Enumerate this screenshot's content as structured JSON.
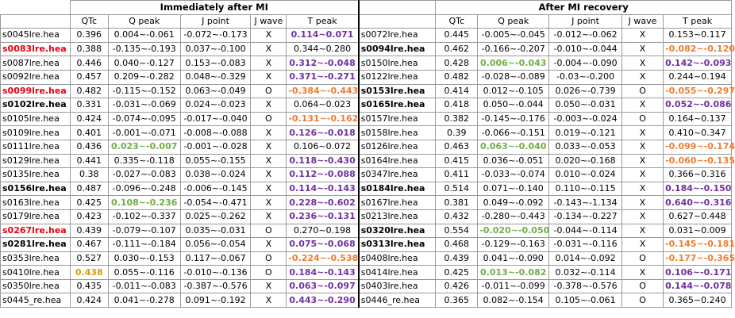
{
  "header": {
    "group1": "Immediately after MI",
    "group2": "After MI recovery"
  },
  "columns": [
    "QTc",
    "Q peak",
    "J point",
    "J wave",
    "T peak"
  ],
  "colors": {
    "red": "#e8000e",
    "purple": "#7030a0",
    "orange": "#ed7d31",
    "green": "#70ad47",
    "gold": "#d89e00"
  },
  "rows": [
    {
      "f1": "s0045lre.hea",
      "q1": "0.396",
      "qp1": "0.004~-0.061",
      "j1": "-0.072~-0.173",
      "w1": "X",
      "t1": "0.114~0.071",
      "f2": "s0072lre.hea",
      "q2": "0.445",
      "qp2": "-0.005~-0.045",
      "j2": "-0.012~-0.062",
      "w2": "X",
      "t2": "0.153~0.117"
    },
    {
      "f1": "s0083lre.hea",
      "q1": "0.388",
      "qp1": "-0.135~-0.193",
      "j1": "0.037~-0.100",
      "w1": "X",
      "t1": "0.344~0.280",
      "f2": "s0094lre.hea",
      "q2": "0.462",
      "qp2": "-0.166~-0.207",
      "j2": "-0.010~-0.044",
      "w2": "X",
      "t2": "-0.082~-0.120"
    },
    {
      "f1": "s0087lre.hea",
      "q1": "0.446",
      "qp1": "0.040~-0.127",
      "j1": "0.153~-0.083",
      "w1": "X",
      "t1": "0.312~-0.048",
      "f2": "s0150lre.hea",
      "q2": "0.428",
      "qp2": "0.006~-0.043",
      "j2": "-0.004~-0.090",
      "w2": "X",
      "t2": "0.142~-0.093"
    },
    {
      "f1": "s0092lre.hea",
      "q1": "0.457",
      "qp1": "0.209~-0.282",
      "j1": "0.048~-0.329",
      "w1": "X",
      "t1": "0.371~-0.271",
      "f2": "s0122lre.hea",
      "q2": "0.482",
      "qp2": "-0.028~-0.089",
      "j2": "-0.03~-0.200",
      "w2": "X",
      "t2": "0.244~0.194"
    },
    {
      "f1": "s0099lre.hea",
      "q1": "0.482",
      "qp1": "-0.115~-0.152",
      "j1": "0.063~-0.049",
      "w1": "O",
      "t1": "-0.384~-0.443",
      "f2": "s0153lre.hea",
      "q2": "0.414",
      "qp2": "0.012~-0.105",
      "j2": "0.026~-0.739",
      "w2": "O",
      "t2": "-0.055~-0.297"
    },
    {
      "f1": "s0102lre.hea",
      "q1": "0.331",
      "qp1": "-0.031~-0.069",
      "j1": "0.024~-0.023",
      "w1": "X",
      "t1": "0.064~0.023",
      "f2": "s0165lre.hea",
      "q2": "0.418",
      "qp2": "0.050~-0.044",
      "j2": "0.050~-0.031",
      "w2": "X",
      "t2": "0.052~-0.086"
    },
    {
      "f1": "s0105lre.hea",
      "q1": "0.424",
      "qp1": "-0.074~-0.095",
      "j1": "-0.017~-0.040",
      "w1": "O",
      "t1": "-0.131~-0.162",
      "f2": "s0157lre.hea",
      "q2": "0.382",
      "qp2": "-0.145~-0.176",
      "j2": "-0.003~-0.024",
      "w2": "O",
      "t2": "0.164~0.137"
    },
    {
      "f1": "s0109lre.hea",
      "q1": "0.401",
      "qp1": "-0.001~-0.071",
      "j1": "-0.008~-0.088",
      "w1": "X",
      "t1": "0.126~-0.018",
      "f2": "s0158lre.hea",
      "q2": "0.39",
      "qp2": "-0.066~-0.151",
      "j2": "0.019~-0.121",
      "w2": "X",
      "t2": "0.410~0.347"
    },
    {
      "f1": "s0111lre.hea",
      "q1": "0.436",
      "qp1": "0.023~-0.007",
      "j1": "-0.001~-0.028",
      "w1": "X",
      "t1": "0.106~0.072",
      "f2": "s0126lre.hea",
      "q2": "0.463",
      "qp2": "0.063~-0.040",
      "j2": "0.033~-0.053",
      "w2": "X",
      "t2": "-0.099~-0.174"
    },
    {
      "f1": "s0129lre.hea",
      "q1": "0.441",
      "qp1": "0.335~-0.118",
      "j1": "0.055~-0.155",
      "w1": "X",
      "t1": "0.118~-0.430",
      "f2": "s0164lre.hea",
      "q2": "0.415",
      "qp2": "0.036~-0.051",
      "j2": "0.020~-0.168",
      "w2": "X",
      "t2": "-0.060~-0.135"
    },
    {
      "f1": "s0135lre.hea",
      "q1": "0.38",
      "qp1": "-0.027~-0.083",
      "j1": "0.038~-0.024",
      "w1": "X",
      "t1": "0.112~-0.088",
      "f2": "s0347lre.hea",
      "q2": "0.411",
      "qp2": "-0.033~-0.074",
      "j2": "0.010~-0.024",
      "w2": "X",
      "t2": "0.366~0.316"
    },
    {
      "f1": "s0156lre.hea",
      "q1": "0.487",
      "qp1": "-0.096~-0.248",
      "j1": "-0.006~-0.145",
      "w1": "X",
      "t1": "0.114~-0.143",
      "f2": "s0184lre.hea",
      "q2": "0.514",
      "qp2": "0.071~-0.140",
      "j2": "0.110~-0.115",
      "w2": "X",
      "t2": "0.184~-0.150"
    },
    {
      "f1": "s0163lre.hea",
      "q1": "0.425",
      "qp1": "0.108~-0.236",
      "j1": "-0.054~-0.471",
      "w1": "X",
      "t1": "0.228~-0.602",
      "f2": "s0167lre.hea",
      "q2": "0.381",
      "qp2": "0.049~-0.092",
      "j2": "-0.143~-1.134",
      "w2": "X",
      "t2": "0.640~-0.316"
    },
    {
      "f1": "s0179lre.hea",
      "q1": "0.423",
      "qp1": "-0.102~-0.337",
      "j1": "0.025~-0.262",
      "w1": "X",
      "t1": "0.236~-0.131",
      "f2": "s0213lre.hea",
      "q2": "0.432",
      "qp2": "-0.280~-0.443",
      "j2": "-0.134~-0.227",
      "w2": "X",
      "t2": "0.627~0.448"
    },
    {
      "f1": "s0267lre.hea",
      "q1": "0.439",
      "qp1": "-0.079~-0.107",
      "j1": "0.035~-0.031",
      "w1": "O",
      "t1": "0.270~0.198",
      "f2": "s0320lre.hea",
      "q2": "0.554",
      "qp2": "-0.020~-0.050",
      "j2": "-0.044~-0.114",
      "w2": "X",
      "t2": "0.031~0.009"
    },
    {
      "f1": "s0281lre.hea",
      "q1": "0.467",
      "qp1": "-0.111~-0.184",
      "j1": "0.056~-0.054",
      "w1": "X",
      "t1": "0.075~-0.068",
      "f2": "s0313lre.hea",
      "q2": "0.468",
      "qp2": "-0.129~-0.163",
      "j2": "-0.031~-0.116",
      "w2": "X",
      "t2": "-0.145~-0.181"
    },
    {
      "f1": "s0353lre.hea",
      "q1": "0.527",
      "qp1": "0.030~-0.153",
      "j1": "0.117~-0.067",
      "w1": "O",
      "t1": "-0.224~-0.538",
      "f2": "s0408lre.hea",
      "q2": "0.439",
      "qp2": "0.041~-0.090",
      "j2": "0.014~-0.092",
      "w2": "O",
      "t2": "-0.177~-0.365"
    },
    {
      "f1": "s0410lre.hea",
      "q1": "0.438",
      "qp1": "0.055~-0.116",
      "j1": "-0.010~-0.136",
      "w1": "O",
      "t1": "0.184~-0.143",
      "f2": "s0414lre.hea",
      "q2": "0.425",
      "qp2": "0.013~-0.082",
      "j2": "0.032~-0.114",
      "w2": "X",
      "t2": "0.106~-0.171"
    },
    {
      "f1": "s0350lre.hea",
      "q1": "0.435",
      "qp1": "-0.011~-0.083",
      "j1": "-0.387~-0.576",
      "w1": "X",
      "t1": "0.063~-0.097",
      "f2": "s0403lre.hea",
      "q2": "0.426",
      "qp2": "-0.011~-0.099",
      "j2": "-0.378~-0.576",
      "w2": "O",
      "t2": "0.144~-0.078"
    },
    {
      "f1": "s0445_re.hea",
      "q1": "0.424",
      "qp1": "0.041~-0.278",
      "j1": "0.091~-0.192",
      "w1": "X",
      "t1": "0.443~-0.290",
      "f2": "s0446_re.hea",
      "q2": "0.365",
      "qp2": "0.082~-0.154",
      "j2": "0.105~-0.061",
      "w2": "O",
      "t2": "0.365~0.240"
    }
  ],
  "styles": [
    {
      "f1": "",
      "q1": "",
      "qp1": "",
      "t1": "purple",
      "f2": "",
      "qp2": "",
      "t2": ""
    },
    {
      "f1": "red",
      "q1": "",
      "qp1": "",
      "t1": "",
      "f2": "bold",
      "qp2": "",
      "t2": "orange"
    },
    {
      "f1": "",
      "q1": "",
      "qp1": "",
      "t1": "purple",
      "f2": "",
      "qp2": "green",
      "t2": "purple"
    },
    {
      "f1": "",
      "q1": "",
      "qp1": "",
      "t1": "purple",
      "f2": "",
      "qp2": "",
      "t2": ""
    },
    {
      "f1": "red",
      "q1": "",
      "qp1": "",
      "t1": "orange",
      "f2": "bold",
      "qp2": "",
      "t2": "orange"
    },
    {
      "f1": "bold",
      "q1": "",
      "qp1": "",
      "t1": "",
      "f2": "bold",
      "qp2": "",
      "t2": "purple"
    },
    {
      "f1": "",
      "q1": "",
      "qp1": "",
      "t1": "orange",
      "f2": "",
      "qp2": "",
      "t2": ""
    },
    {
      "f1": "",
      "q1": "",
      "qp1": "",
      "t1": "purple",
      "f2": "",
      "qp2": "",
      "t2": ""
    },
    {
      "f1": "",
      "q1": "",
      "qp1": "green",
      "t1": "",
      "f2": "",
      "qp2": "green",
      "t2": "orange"
    },
    {
      "f1": "",
      "q1": "",
      "qp1": "",
      "t1": "purple",
      "f2": "",
      "qp2": "",
      "t2": "orange"
    },
    {
      "f1": "",
      "q1": "",
      "qp1": "",
      "t1": "purple",
      "f2": "",
      "qp2": "",
      "t2": ""
    },
    {
      "f1": "bold",
      "q1": "",
      "qp1": "",
      "t1": "purple",
      "f2": "bold",
      "qp2": "",
      "t2": "purple"
    },
    {
      "f1": "",
      "q1": "",
      "qp1": "green",
      "t1": "purple",
      "f2": "",
      "qp2": "",
      "t2": "purple"
    },
    {
      "f1": "",
      "q1": "",
      "qp1": "",
      "t1": "purple",
      "f2": "",
      "qp2": "",
      "t2": ""
    },
    {
      "f1": "red",
      "q1": "",
      "qp1": "",
      "t1": "",
      "f2": "bold",
      "qp2": "green",
      "t2": ""
    },
    {
      "f1": "bold",
      "q1": "",
      "qp1": "",
      "t1": "purple",
      "f2": "bold",
      "qp2": "",
      "t2": "orange"
    },
    {
      "f1": "",
      "q1": "",
      "qp1": "",
      "t1": "orange",
      "f2": "",
      "qp2": "",
      "t2": "orange"
    },
    {
      "f1": "",
      "q1": "gold",
      "qp1": "",
      "t1": "purple",
      "f2": "",
      "qp2": "green",
      "t2": "purple"
    },
    {
      "f1": "",
      "q1": "",
      "qp1": "",
      "t1": "purple",
      "f2": "",
      "qp2": "",
      "t2": "purple"
    },
    {
      "f1": "",
      "q1": "",
      "qp1": "",
      "t1": "purple",
      "f2": "",
      "qp2": "",
      "t2": ""
    }
  ]
}
